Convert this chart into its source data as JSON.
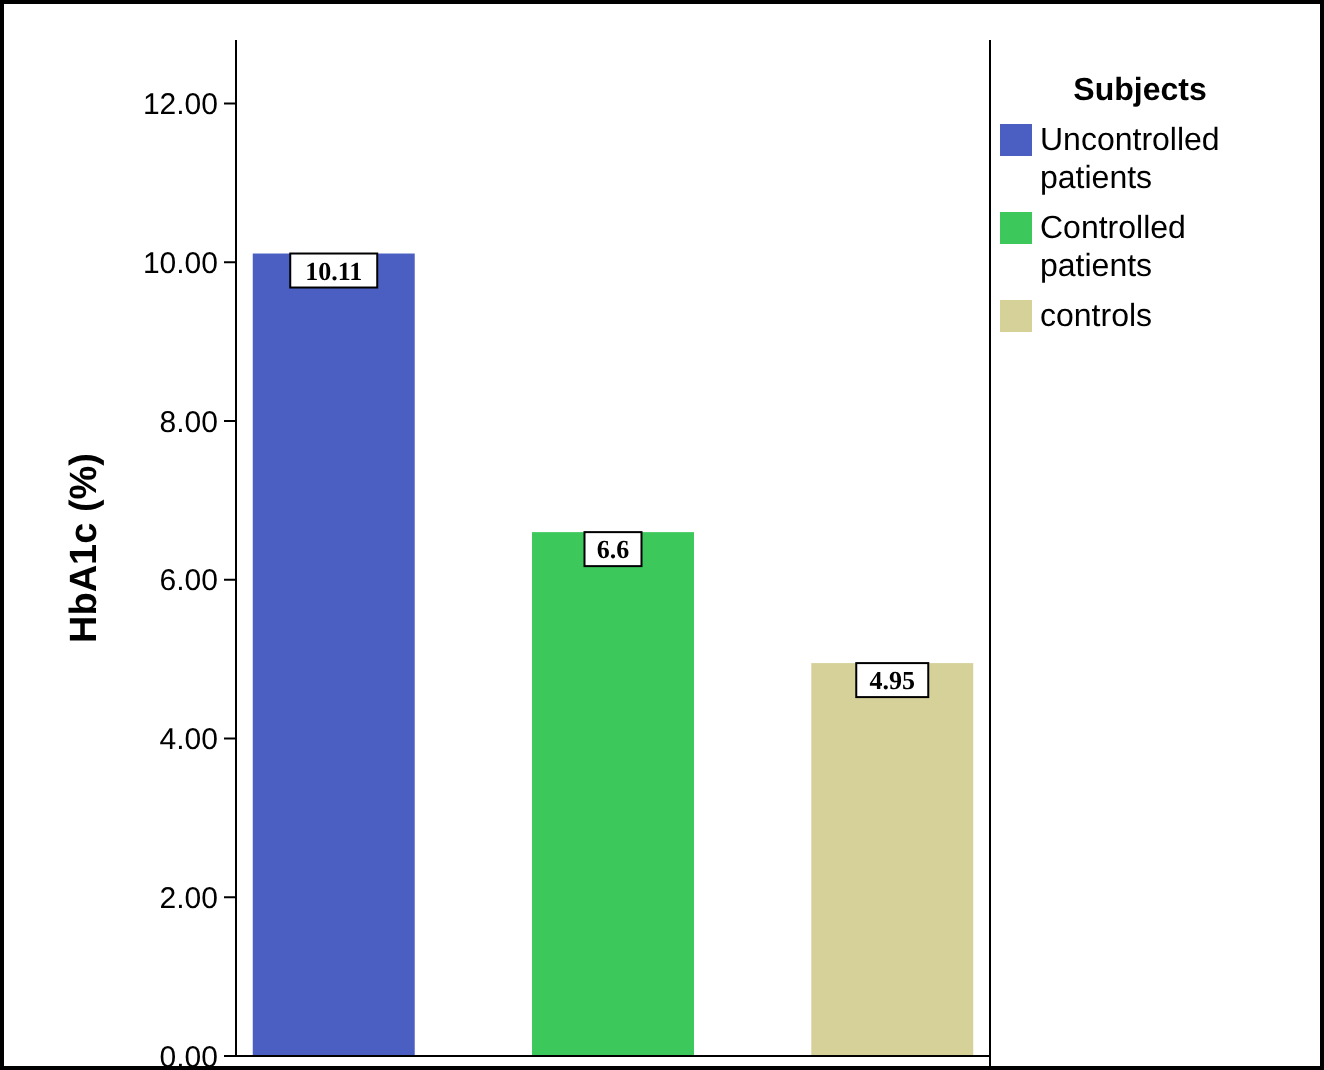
{
  "chart_data": {
    "type": "bar",
    "ylabel": "HbA1c (%)",
    "legend_title": "Subjects",
    "categories": [
      null,
      null,
      null
    ],
    "series": [
      {
        "name": "Uncontrolled patients",
        "color": "#4b5fc2",
        "values": [
          10.11,
          null,
          null
        ]
      },
      {
        "name": "Controlled patients",
        "color": "#3dc85c",
        "values": [
          null,
          6.6,
          null
        ]
      },
      {
        "name": "controls",
        "color": "#d6d198",
        "values": [
          null,
          null,
          4.95
        ]
      }
    ],
    "ylim": [
      0,
      12.8
    ],
    "yticks": [
      {
        "value": 0,
        "label": "0.00"
      },
      {
        "value": 2,
        "label": "2.00"
      },
      {
        "value": 4,
        "label": "4.00"
      },
      {
        "value": 6,
        "label": "6.00"
      },
      {
        "value": 8,
        "label": "8.00"
      },
      {
        "value": 10,
        "label": "10.00"
      },
      {
        "value": 12,
        "label": "12.00"
      }
    ],
    "tick_labels": "y",
    "legend": "right",
    "data_labels": true
  }
}
